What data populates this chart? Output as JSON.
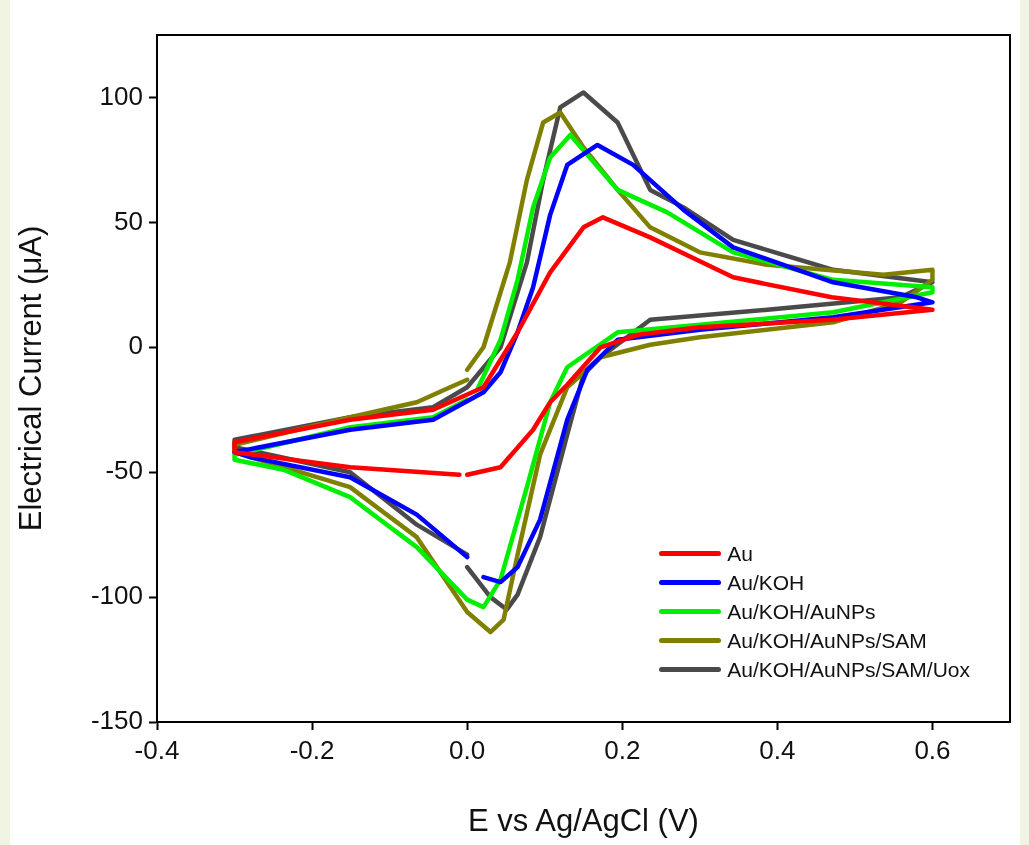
{
  "chart_data": {
    "type": "line",
    "xlabel": "E vs Ag/AgCl (V)",
    "ylabel": "Electrical Current (μA)",
    "xlim": [
      -0.4,
      0.7
    ],
    "xticks": [
      -0.4,
      -0.2,
      {
        "value": 0,
        "label": "0.0"
      },
      0.2,
      0.4,
      0.6
    ],
    "ylim": [
      -150,
      125
    ],
    "yticks": [
      -150,
      -100,
      -50,
      0,
      50,
      100
    ],
    "grid": false,
    "legend": "bottom right",
    "marker": "none",
    "line_style": "solid",
    "series": [
      {
        "name": "Au",
        "color": "#ff0000",
        "x": [
          0.0,
          0.043,
          0.085,
          0.107,
          0.129,
          0.172,
          0.22,
          0.3,
          0.47,
          0.6,
          0.47,
          0.343,
          0.236,
          0.175,
          0.15,
          0.107,
          0.065,
          0.021,
          -0.044,
          -0.151,
          -0.3,
          -0.3,
          -0.151,
          -0.01
        ],
        "values": [
          -51,
          -48,
          -33,
          -22,
          -15,
          0,
          5,
          8,
          11,
          15,
          20,
          28,
          44,
          52,
          48,
          30,
          6,
          -16,
          -25,
          -29,
          -38,
          -42,
          -48,
          -51
        ]
      },
      {
        "name": "Au/KOH",
        "color": "#0000ff",
        "x": [
          0.021,
          0.043,
          0.065,
          0.085,
          0.107,
          0.129,
          0.168,
          0.214,
          0.279,
          0.343,
          0.472,
          0.58,
          0.6,
          0.472,
          0.3,
          0.194,
          0.155,
          0.129,
          0.094,
          0.065,
          0.043,
          0.021,
          null,
          0.0,
          -0.065,
          -0.151,
          -0.28,
          -0.3,
          -0.151,
          -0.044,
          0.021
        ],
        "values": [
          -18,
          -10,
          6,
          24,
          53,
          73,
          81,
          73,
          55,
          40,
          26,
          20,
          18,
          12,
          7,
          3,
          -9,
          -29,
          -69,
          -88,
          -94,
          -92,
          null,
          -84,
          -67,
          -52,
          -44,
          -42,
          -33,
          -29,
          -18
        ]
      },
      {
        "name": "Au/KOH/AuNPs",
        "color": "#00ee00",
        "x": [
          0.013,
          0.043,
          0.065,
          0.085,
          0.107,
          0.133,
          0.194,
          0.258,
          0.343,
          0.472,
          0.6,
          0.6,
          0.472,
          0.3,
          0.194,
          0.129,
          0.107,
          0.077,
          0.043,
          0.021,
          0.0,
          -0.065,
          -0.151,
          -0.237,
          -0.3,
          -0.3,
          -0.151,
          -0.044,
          0.0
        ],
        "values": [
          -17,
          3,
          27,
          56,
          76,
          85,
          63,
          54,
          38,
          27,
          24,
          22,
          14,
          9,
          6,
          -8,
          -22,
          -56,
          -93,
          -104,
          -101,
          -80,
          -60,
          -49,
          -45,
          -43,
          -32,
          -28,
          -21
        ]
      },
      {
        "name": "Au/KOH/AuNPs/SAM",
        "color": "#808000",
        "x": [
          0.0,
          0.021,
          0.055,
          0.077,
          0.098,
          0.12,
          0.15,
          0.194,
          0.236,
          0.3,
          0.387,
          0.537,
          0.6,
          0.6,
          0.559,
          0.472,
          0.3,
          0.236,
          0.172,
          0.129,
          0.094,
          0.065,
          0.047,
          0.03,
          0.0,
          -0.065,
          -0.151,
          -0.3,
          -0.3,
          -0.151,
          -0.065,
          -0.022,
          0.0
        ],
        "values": [
          -9,
          0,
          34,
          67,
          90,
          94,
          80,
          63,
          48,
          38,
          33,
          29,
          31,
          27,
          18,
          10,
          4,
          1,
          -4,
          -16,
          -43,
          -83,
          -109,
          -114,
          -106,
          -76,
          -56,
          -42,
          -39,
          -28,
          -22,
          -16,
          -13
        ]
      },
      {
        "name": "Au/KOH/AuNPs/SAM/Uox",
        "color": "#4a4a4a",
        "x": [
          0.0,
          0.043,
          0.077,
          0.098,
          0.12,
          0.15,
          0.194,
          0.236,
          0.279,
          0.343,
          0.472,
          0.6,
          0.559,
          0.387,
          0.236,
          0.172,
          0.15,
          0.129,
          0.094,
          0.065,
          0.051,
          0.03,
          0.0,
          null,
          0.0,
          -0.065,
          -0.151,
          -0.3,
          -0.3,
          -0.151,
          -0.044,
          0.0
        ],
        "values": [
          -16,
          0,
          34,
          67,
          96,
          102,
          90,
          63,
          56,
          43,
          31,
          26,
          20,
          15,
          11,
          -4,
          -11,
          -35,
          -76,
          -99,
          -105,
          -100,
          -88,
          null,
          -83,
          -71,
          -50,
          -40,
          -37,
          -28,
          -24,
          -16
        ]
      }
    ]
  }
}
